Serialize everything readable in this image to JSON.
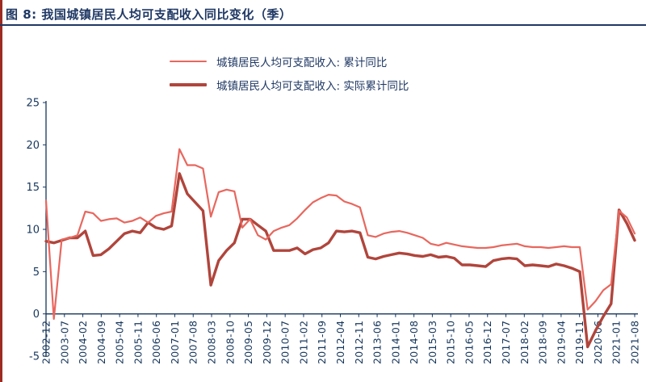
{
  "header": {
    "title": "图 8: 我国城镇居民人均可支配收入同比变化（季）"
  },
  "colors": {
    "title_navy": "#1F3864",
    "axis_navy": "#16365C",
    "line_light": "#E8675E",
    "line_dark": "#B0453C",
    "left_strip": "#9C2B23",
    "title_rule": "#1F3864"
  },
  "legend": {
    "items": [
      {
        "label": "城镇居民人均可支配收入: 累计同比",
        "color": "#E8675E",
        "thickness": 2
      },
      {
        "label": "城镇居民人均可支配收入: 实际累计同比",
        "color": "#B0453C",
        "thickness": 4
      }
    ]
  },
  "chart_data": {
    "type": "line",
    "title": "我国城镇居民人均可支配收入同比变化（季）",
    "ylabel": "",
    "xlabel": "",
    "ylim": [
      -5,
      25
    ],
    "yticks": [
      25,
      20,
      15,
      10,
      5,
      0,
      -5
    ],
    "grid": false,
    "legend_position": "top-center",
    "x_tick_labels": [
      "2002-12",
      "2003-07",
      "2004-02",
      "2004-09",
      "2005-04",
      "2005-11",
      "2006-06",
      "2007-01",
      "2007-08",
      "2008-03",
      "2008-10",
      "2009-05",
      "2009-12",
      "2010-07",
      "2011-02",
      "2011-09",
      "2012-04",
      "2012-11",
      "2013-06",
      "2014-01",
      "2014-08",
      "2015-03",
      "2015-10",
      "2016-05",
      "2016-12",
      "2017-07",
      "2018-02",
      "2018-09",
      "2019-04",
      "2019-11",
      "2020-06",
      "2021-01",
      "2021-08"
    ],
    "x": [
      "2002-12",
      "2003-03",
      "2003-06",
      "2003-09",
      "2003-12",
      "2004-03",
      "2004-06",
      "2004-09",
      "2004-12",
      "2005-03",
      "2005-06",
      "2005-09",
      "2005-12",
      "2006-03",
      "2006-06",
      "2006-09",
      "2006-12",
      "2007-03",
      "2007-06",
      "2007-09",
      "2007-12",
      "2008-03",
      "2008-06",
      "2008-09",
      "2008-12",
      "2009-03",
      "2009-06",
      "2009-09",
      "2009-12",
      "2010-03",
      "2010-06",
      "2010-09",
      "2010-12",
      "2011-03",
      "2011-06",
      "2011-09",
      "2011-12",
      "2012-03",
      "2012-06",
      "2012-09",
      "2012-12",
      "2013-03",
      "2013-06",
      "2013-09",
      "2013-12",
      "2014-03",
      "2014-06",
      "2014-09",
      "2014-12",
      "2015-03",
      "2015-06",
      "2015-09",
      "2015-12",
      "2016-03",
      "2016-06",
      "2016-09",
      "2016-12",
      "2017-03",
      "2017-06",
      "2017-09",
      "2017-12",
      "2018-03",
      "2018-06",
      "2018-09",
      "2018-12",
      "2019-03",
      "2019-06",
      "2019-09",
      "2019-12",
      "2020-03",
      "2020-06",
      "2020-09",
      "2020-12",
      "2021-03",
      "2021-06",
      "2021-09"
    ],
    "series": [
      {
        "name": "城镇居民人均可支配收入: 累计同比",
        "color": "#E8675E",
        "stroke_width": 2.2,
        "values": [
          13.4,
          -0.6,
          8.8,
          9.0,
          9.3,
          12.1,
          11.9,
          11.0,
          11.2,
          11.3,
          10.8,
          11.0,
          11.4,
          10.8,
          11.6,
          11.9,
          12.1,
          19.5,
          17.6,
          17.6,
          17.2,
          11.5,
          14.4,
          14.7,
          14.5,
          10.2,
          11.2,
          9.3,
          8.8,
          9.8,
          10.2,
          10.5,
          11.3,
          12.3,
          13.2,
          13.7,
          14.1,
          14.0,
          13.3,
          13.0,
          12.6,
          9.3,
          9.1,
          9.5,
          9.7,
          9.8,
          9.6,
          9.3,
          9.0,
          8.3,
          8.1,
          8.4,
          8.2,
          8.0,
          7.9,
          7.8,
          7.8,
          7.9,
          8.1,
          8.2,
          8.3,
          8.0,
          7.9,
          7.9,
          7.8,
          7.9,
          8.0,
          7.9,
          7.9,
          0.5,
          1.5,
          2.8,
          3.5,
          12.2,
          11.4,
          9.5
        ]
      },
      {
        "name": "城镇居民人均可支配收入: 实际累计同比",
        "color": "#B0453C",
        "stroke_width": 3.4,
        "values": [
          8.6,
          8.4,
          8.7,
          9.0,
          9.0,
          9.8,
          6.9,
          7.0,
          7.7,
          8.6,
          9.5,
          9.8,
          9.6,
          10.8,
          10.2,
          10.0,
          10.4,
          16.6,
          14.2,
          13.2,
          12.2,
          3.4,
          6.3,
          7.5,
          8.4,
          11.2,
          11.2,
          10.5,
          9.8,
          7.5,
          7.5,
          7.5,
          7.8,
          7.1,
          7.6,
          7.8,
          8.4,
          9.8,
          9.7,
          9.8,
          9.6,
          6.7,
          6.5,
          6.8,
          7.0,
          7.2,
          7.1,
          6.9,
          6.8,
          7.0,
          6.7,
          6.8,
          6.6,
          5.8,
          5.8,
          5.7,
          5.6,
          6.3,
          6.5,
          6.6,
          6.5,
          5.7,
          5.8,
          5.7,
          5.6,
          5.9,
          5.7,
          5.4,
          5.0,
          -3.9,
          -2.0,
          -0.3,
          1.2,
          12.3,
          10.7,
          8.7
        ]
      }
    ]
  }
}
